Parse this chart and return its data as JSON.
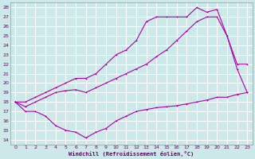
{
  "xlabel": "Windchill (Refroidissement éolien,°C)",
  "bg_color": "#cce8e8",
  "grid_color": "#ffffff",
  "line_color": "#aa00aa",
  "xlim": [
    -0.5,
    23.5
  ],
  "ylim": [
    13.5,
    28.5
  ],
  "xticks": [
    0,
    1,
    2,
    3,
    4,
    5,
    6,
    7,
    8,
    9,
    10,
    11,
    12,
    13,
    14,
    15,
    16,
    17,
    18,
    19,
    20,
    21,
    22,
    23
  ],
  "yticks": [
    14,
    15,
    16,
    17,
    18,
    19,
    20,
    21,
    22,
    23,
    24,
    25,
    26,
    27,
    28
  ],
  "line1_x": [
    0,
    1,
    2,
    3,
    4,
    5,
    6,
    7,
    8,
    9,
    10,
    11,
    12,
    13,
    14,
    15,
    16,
    17,
    18,
    19,
    20,
    21,
    22,
    23
  ],
  "line1_y": [
    18.0,
    17.0,
    17.0,
    16.5,
    15.5,
    15.0,
    14.8,
    14.2,
    14.8,
    15.2,
    16.0,
    16.5,
    17.0,
    17.2,
    17.4,
    17.5,
    17.6,
    17.8,
    18.0,
    18.2,
    18.5,
    18.5,
    18.8,
    19.0
  ],
  "line2_x": [
    0,
    1,
    2,
    3,
    4,
    5,
    6,
    7,
    8,
    9,
    10,
    11,
    12,
    13,
    14,
    15,
    16,
    17,
    18,
    19,
    20,
    21,
    22,
    23
  ],
  "line2_y": [
    18.0,
    17.5,
    18.0,
    18.5,
    19.0,
    19.2,
    19.3,
    19.0,
    19.5,
    20.0,
    20.5,
    21.0,
    21.5,
    22.0,
    22.8,
    23.5,
    24.5,
    25.5,
    26.5,
    27.0,
    27.0,
    25.0,
    21.5,
    19.0
  ],
  "line3_x": [
    0,
    1,
    2,
    3,
    4,
    5,
    6,
    7,
    8,
    9,
    10,
    11,
    12,
    13,
    14,
    15,
    16,
    17,
    18,
    19,
    20,
    21,
    22,
    23
  ],
  "line3_y": [
    18.0,
    18.0,
    18.5,
    19.0,
    19.5,
    20.0,
    20.5,
    20.5,
    21.0,
    22.0,
    23.0,
    23.5,
    24.5,
    26.5,
    27.0,
    27.0,
    27.0,
    27.0,
    28.0,
    27.5,
    27.8,
    25.0,
    22.0,
    22.0
  ]
}
